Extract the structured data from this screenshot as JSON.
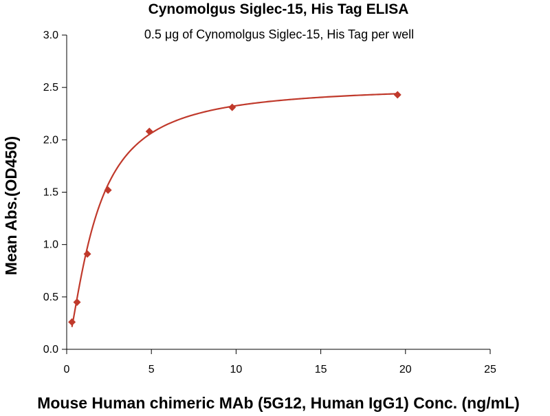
{
  "chart_data": {
    "type": "scatter",
    "title": "Cynomolgus Siglec-15, His Tag ELISA",
    "subtitle": "0.5 μg of Cynomolgus Siglec-15, His Tag per well",
    "xlabel": "Mouse Human chimeric MAb (5G12, Human IgG1) Conc. (ng/mL)",
    "ylabel": "Mean Abs.(OD450)",
    "xlim": [
      0,
      25
    ],
    "ylim": [
      0,
      3.0
    ],
    "x_ticks": [
      "0",
      "5",
      "10",
      "15",
      "20",
      "25"
    ],
    "y_ticks": [
      "0.0",
      "0.5",
      "1.0",
      "1.5",
      "2.0",
      "2.5",
      "3.0"
    ],
    "grid": false,
    "legend": "none",
    "marker_color": "#c0392b",
    "series": [
      {
        "x": [
          0.31,
          0.61,
          1.22,
          2.44,
          4.88,
          9.77,
          19.53
        ],
        "y": [
          0.26,
          0.45,
          0.91,
          1.52,
          2.08,
          2.31,
          2.43
        ]
      }
    ],
    "fit_curve": {
      "model": "four-parameter logistic",
      "bottom": 0.0,
      "top": 2.52,
      "ec50": 1.7,
      "hill": 1.4,
      "x_range": [
        0.31,
        19.53
      ],
      "color": "#c0392b"
    }
  }
}
